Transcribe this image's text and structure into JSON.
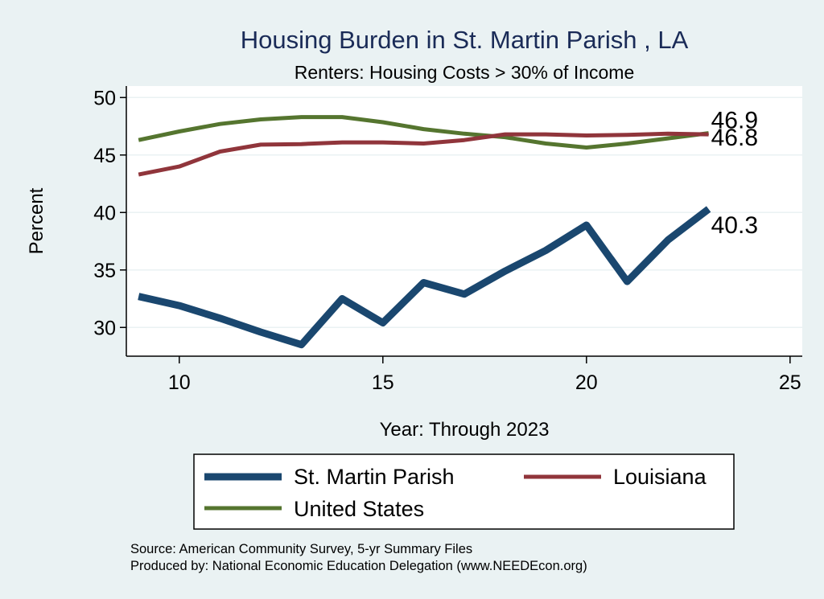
{
  "chart_data": {
    "type": "line",
    "title": "Housing Burden in St. Martin Parish , LA",
    "subtitle": "Renters: Housing Costs > 30% of Income",
    "xlabel": "Year: Through 2023",
    "ylabel": "Percent",
    "xlim": [
      8.7,
      25.3
    ],
    "ylim": [
      27.5,
      51.0
    ],
    "xticks": [
      10,
      15,
      20,
      25
    ],
    "yticks": [
      30,
      35,
      40,
      45,
      50
    ],
    "grid": true,
    "legend_position": "bottom",
    "x": [
      9,
      10,
      11,
      12,
      13,
      14,
      15,
      16,
      17,
      18,
      19,
      20,
      21,
      22,
      23
    ],
    "series": [
      {
        "name": "St. Martin Parish",
        "color": "#1a476f",
        "values": [
          32.7,
          31.9,
          30.8,
          29.6,
          28.5,
          32.5,
          30.4,
          33.9,
          32.9,
          34.9,
          36.7,
          38.9,
          34.0,
          37.6,
          40.3
        ],
        "end_label": "40.3"
      },
      {
        "name": "Louisiana",
        "color": "#90353b",
        "values": [
          43.3,
          44.0,
          45.3,
          45.9,
          45.95,
          46.1,
          46.1,
          46.0,
          46.3,
          46.8,
          46.8,
          46.7,
          46.75,
          46.85,
          46.8
        ],
        "end_label": "46.8"
      },
      {
        "name": "United States",
        "color": "#55752f",
        "values": [
          46.3,
          47.05,
          47.7,
          48.1,
          48.3,
          48.3,
          47.85,
          47.25,
          46.85,
          46.55,
          46.0,
          45.65,
          46.0,
          46.45,
          46.9
        ],
        "end_label": "46.9"
      }
    ],
    "notes": [
      "Source: American Community Survey, 5-yr Summary Files",
      "Produced by: National Economic Education Delegation (www.NEEDEcon.org)"
    ]
  }
}
